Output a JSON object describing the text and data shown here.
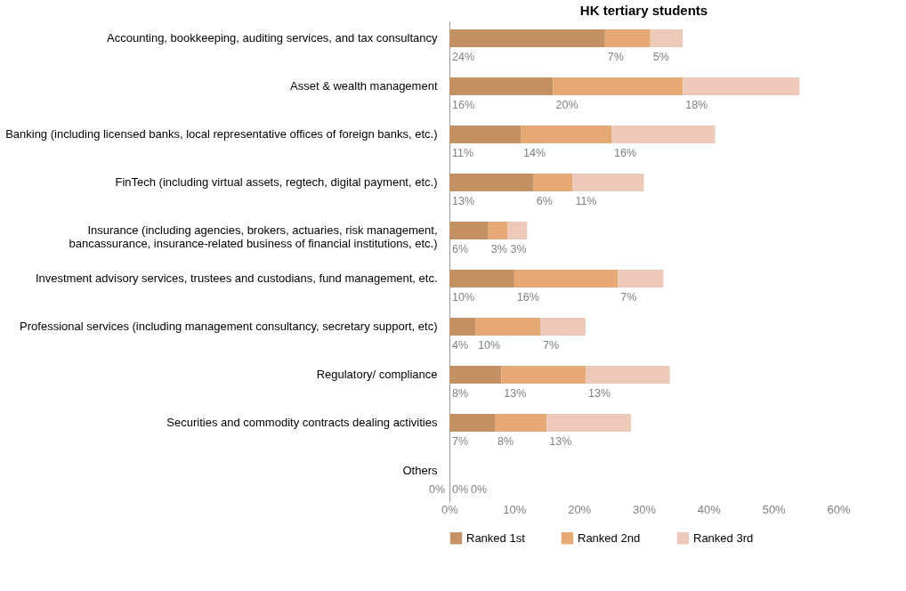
{
  "chart_data": {
    "type": "bar",
    "orientation": "horizontal",
    "stacked": true,
    "title": "HK tertiary students",
    "categories": [
      "Accounting, bookkeeping, auditing services, and tax  consultancy",
      "Asset & wealth management",
      "Banking (including licensed banks, local representative offices of foreign banks, etc.)",
      "FinTech (including virtual assets, regtech, digital payment, etc.)",
      "Insurance (including agencies, brokers, actuaries, risk management,\nbancassurance, insurance-related business of financial institutions, etc.)",
      "Investment advisory services, trustees and custodians, fund management, etc.",
      "Professional services (including management consultancy, secretary support, etc)",
      "Regulatory/ compliance",
      "Securities and commodity contracts dealing activities",
      "Others"
    ],
    "series": [
      {
        "name": "Ranked 1st",
        "color": "#c49165",
        "values": [
          24,
          16,
          11,
          13,
          6,
          10,
          4,
          8,
          7,
          0
        ],
        "value_labels": [
          "24%",
          "16%",
          "11%",
          "13%",
          "6%",
          "10%",
          "4%",
          "8%",
          "7%",
          "0%"
        ]
      },
      {
        "name": "Ranked 2nd",
        "color": "#e6a874",
        "values": [
          7,
          20,
          14,
          6,
          3,
          16,
          10,
          13,
          8,
          0
        ],
        "value_labels": [
          "7%",
          "20%",
          "14%",
          "6%",
          "3%",
          "16%",
          "10%",
          "13%",
          "8%",
          "0%"
        ]
      },
      {
        "name": "Ranked 3rd",
        "color": "#ecc9b8",
        "values": [
          5,
          18,
          16,
          11,
          3,
          7,
          7,
          13,
          13,
          0
        ],
        "value_labels": [
          "5%",
          "18%",
          "16%",
          "11%",
          "3%",
          "7%",
          "7%",
          "13%",
          "13%",
          "0%"
        ]
      }
    ],
    "xlim": [
      0,
      60
    ],
    "xticks": [
      {
        "value": 0,
        "label": "0%"
      },
      {
        "value": 10,
        "label": "10%"
      },
      {
        "value": 20,
        "label": "20%"
      },
      {
        "value": 30,
        "label": "30%"
      },
      {
        "value": 40,
        "label": "40%"
      },
      {
        "value": 50,
        "label": "50%"
      },
      {
        "value": 60,
        "label": "60%"
      }
    ],
    "grid": false,
    "legend": "bottom"
  }
}
